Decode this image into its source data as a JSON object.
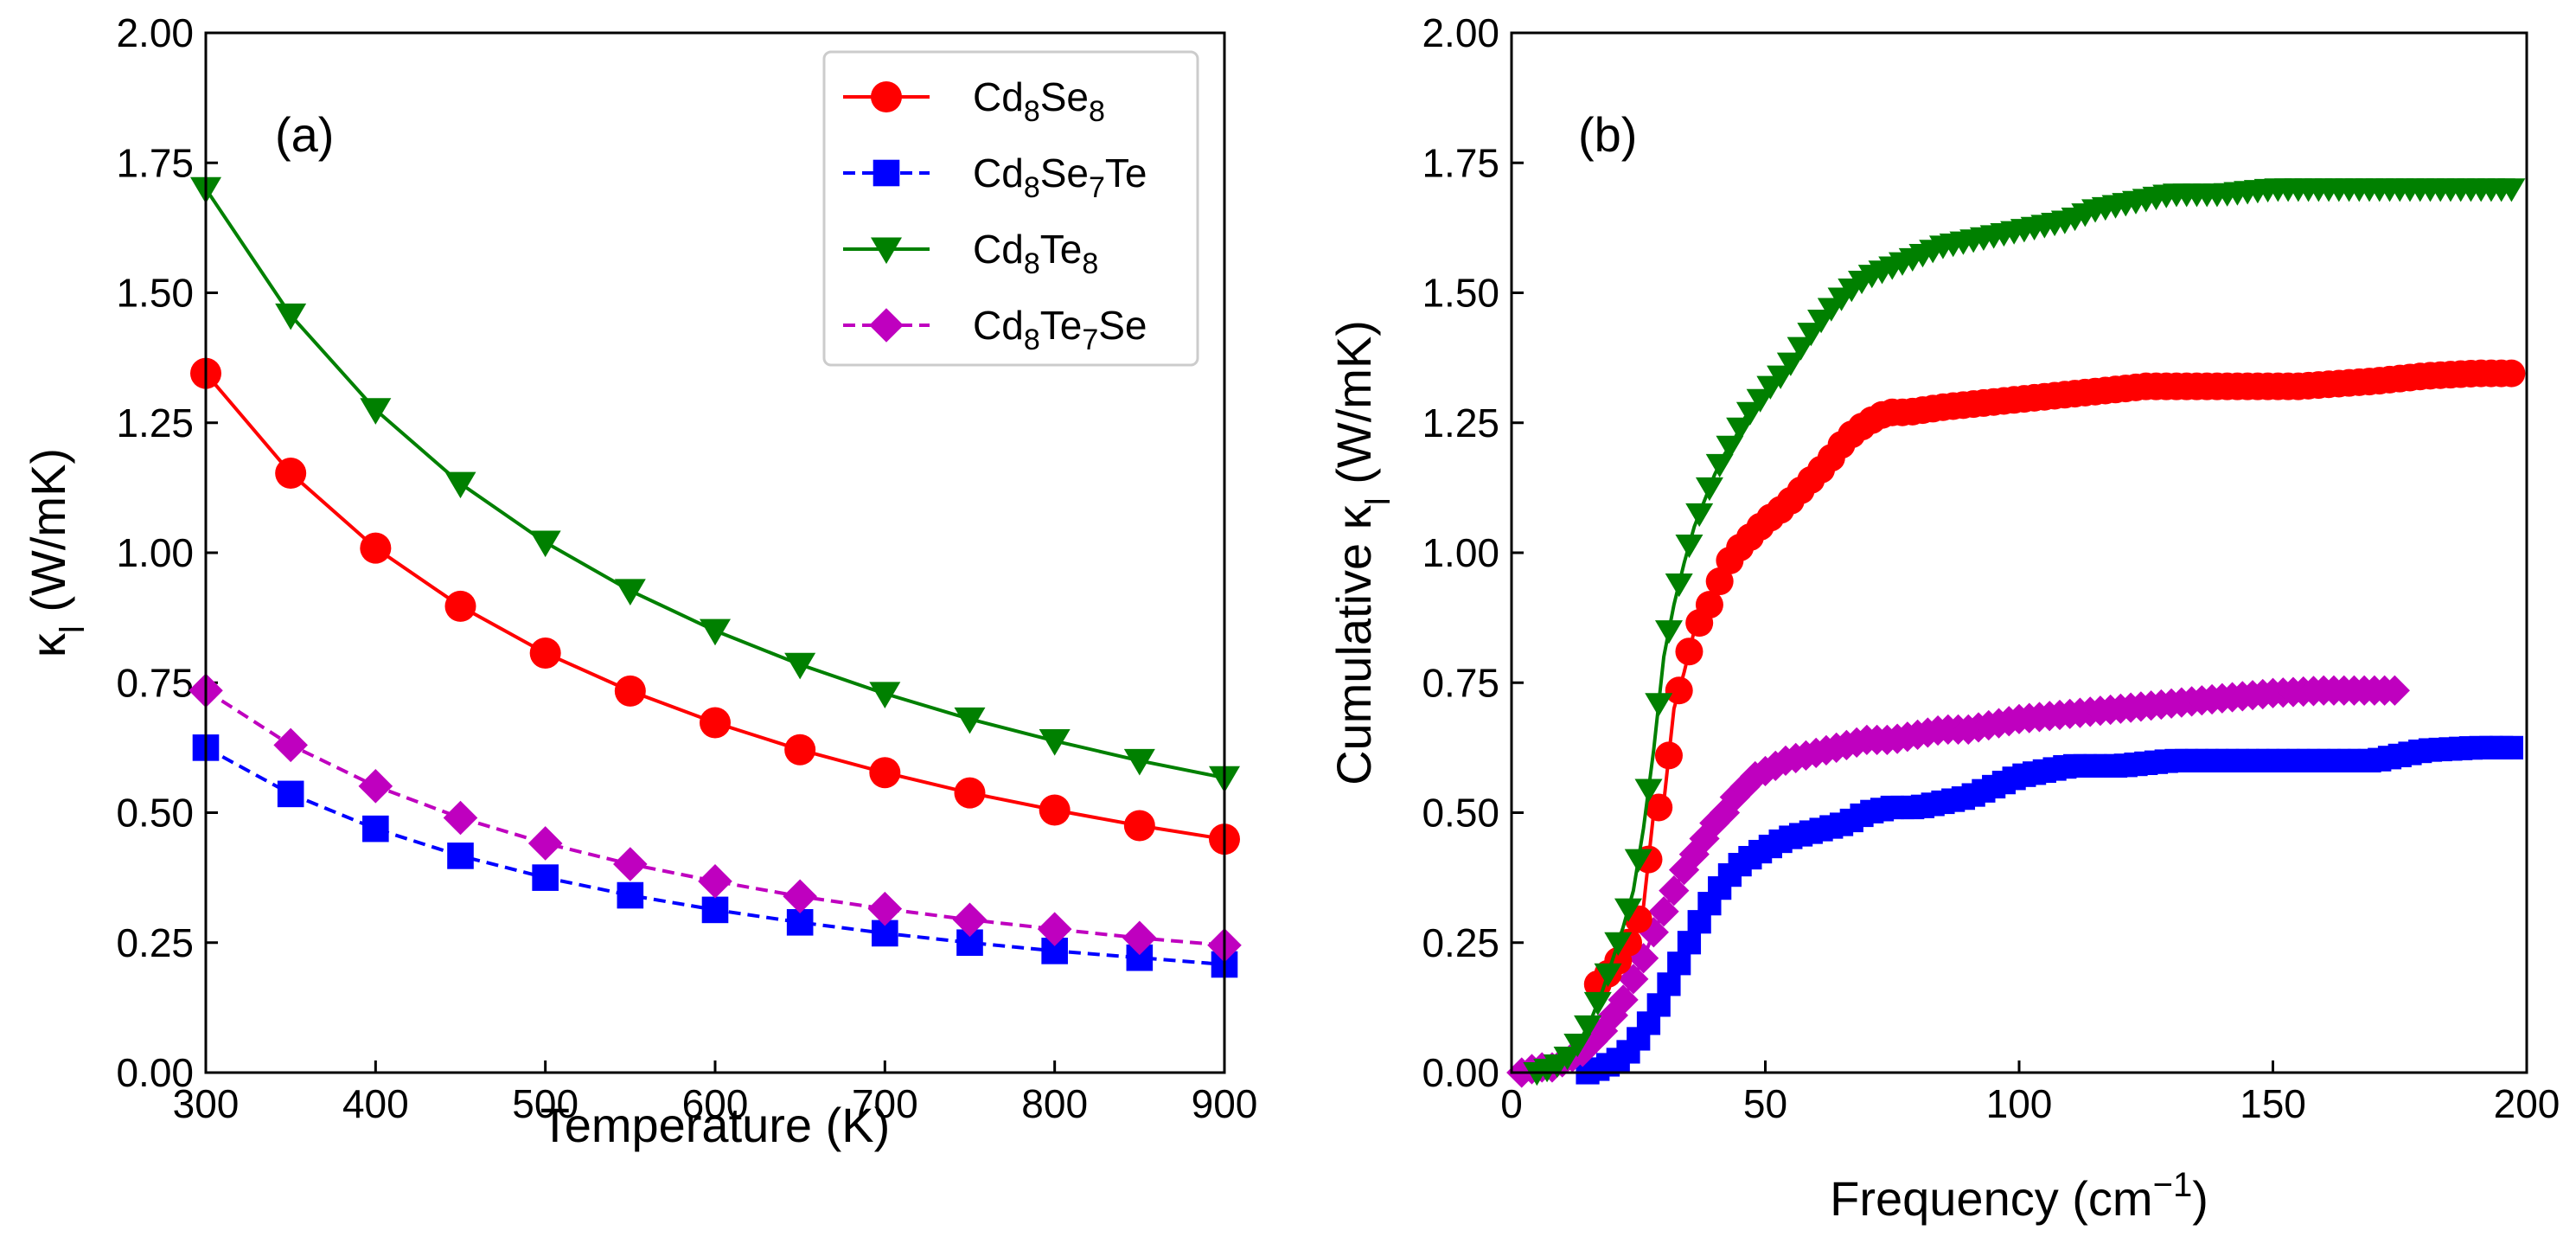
{
  "figure": {
    "colors": {
      "Cd8Se8": "#ff0000",
      "Cd8Se7Te": "#0000ff",
      "Cd8Te8": "#008000",
      "Cd8Te7Se": "#bf00bf"
    }
  },
  "chart_data": [
    {
      "type": "line",
      "panel_tag": "(a)",
      "xlabel": "Temperature (K)",
      "ylabel_main": "κ",
      "ylabel_sub": "l",
      "ylabel_rest": " (W/mK)",
      "xlim": [
        300,
        900
      ],
      "ylim": [
        0,
        2.0
      ],
      "xticks": [
        300,
        400,
        500,
        600,
        700,
        800,
        900
      ],
      "xtick_labels": [
        "300",
        "400",
        "500",
        "600",
        "700",
        "800",
        "900"
      ],
      "yticks": [
        0,
        0.25,
        0.5,
        0.75,
        1.0,
        1.25,
        1.5,
        1.75,
        2.0
      ],
      "ytick_labels": [
        "0.00",
        "0.25",
        "0.50",
        "0.75",
        "1.00",
        "1.25",
        "1.50",
        "1.75",
        "2.00"
      ],
      "x": [
        300,
        350,
        400,
        450,
        500,
        550,
        600,
        650,
        700,
        750,
        800,
        850,
        900
      ],
      "legend_position": "top-right",
      "series": [
        {
          "key": "Cd8Se8",
          "name": "Cd8Se8",
          "legend_parts": [
            [
              "Cd",
              ""
            ],
            [
              "8",
              "sub"
            ],
            [
              "Se",
              ""
            ],
            [
              "8",
              "sub"
            ]
          ],
          "marker": "circle",
          "dash": "solid",
          "values": [
            1.345,
            1.153,
            1.009,
            0.897,
            0.807,
            0.734,
            0.673,
            0.621,
            0.577,
            0.538,
            0.505,
            0.475,
            0.449
          ]
        },
        {
          "key": "Cd8Se7Te",
          "name": "Cd8Se7Te",
          "legend_parts": [
            [
              "Cd",
              ""
            ],
            [
              "8",
              "sub"
            ],
            [
              "Se",
              ""
            ],
            [
              "7",
              "sub"
            ],
            [
              "Te",
              ""
            ]
          ],
          "marker": "square",
          "dash": "dashed",
          "values": [
            0.625,
            0.536,
            0.469,
            0.417,
            0.375,
            0.341,
            0.313,
            0.289,
            0.268,
            0.25,
            0.234,
            0.221,
            0.208
          ]
        },
        {
          "key": "Cd8Te8",
          "name": "Cd8Te8",
          "legend_parts": [
            [
              "Cd",
              ""
            ],
            [
              "8",
              "sub"
            ],
            [
              "Te",
              ""
            ],
            [
              "8",
              "sub"
            ]
          ],
          "marker": "triangle-down",
          "dash": "solid",
          "values": [
            1.7,
            1.457,
            1.275,
            1.133,
            1.02,
            0.927,
            0.85,
            0.785,
            0.729,
            0.68,
            0.638,
            0.6,
            0.567
          ]
        },
        {
          "key": "Cd8Te7Se",
          "name": "Cd8Te7Se",
          "legend_parts": [
            [
              "Cd",
              ""
            ],
            [
              "8",
              "sub"
            ],
            [
              "Te",
              ""
            ],
            [
              "7",
              "sub"
            ],
            [
              "Se",
              ""
            ]
          ],
          "marker": "diamond",
          "dash": "dashed",
          "values": [
            0.735,
            0.63,
            0.551,
            0.49,
            0.441,
            0.401,
            0.368,
            0.339,
            0.315,
            0.294,
            0.276,
            0.259,
            0.245
          ]
        }
      ]
    },
    {
      "type": "line",
      "panel_tag": "(b)",
      "xlabel_main": "Frequency (cm",
      "xlabel_sup": "−1",
      "xlabel_end": ")",
      "ylabel_main": "Cumulative κ",
      "ylabel_sub": "l",
      "ylabel_rest": " (W/mK)",
      "xlim": [
        0,
        200
      ],
      "ylim": [
        0,
        2.0
      ],
      "xticks": [
        0,
        50,
        100,
        150,
        200
      ],
      "xtick_labels": [
        "0",
        "50",
        "100",
        "150",
        "200"
      ],
      "yticks": [
        0,
        0.25,
        0.5,
        0.75,
        1.0,
        1.25,
        1.5,
        1.75,
        2.0
      ],
      "ytick_labels": [
        "0.00",
        "0.25",
        "0.50",
        "0.75",
        "1.00",
        "1.25",
        "1.50",
        "1.75",
        "2.00"
      ],
      "series": [
        {
          "key": "Cd8Se8",
          "marker": "circle",
          "range": [
            17,
            198
          ],
          "points": [
            [
              17,
              0.17
            ],
            [
              20,
              0.2
            ],
            [
              22,
              0.23
            ],
            [
              24,
              0.27
            ],
            [
              26,
              0.32
            ],
            [
              28,
              0.5
            ],
            [
              30,
              0.52
            ],
            [
              32,
              0.7
            ],
            [
              34,
              0.77
            ],
            [
              36,
              0.85
            ],
            [
              38,
              0.88
            ],
            [
              40,
              0.92
            ],
            [
              42,
              0.97
            ],
            [
              44,
              1.0
            ],
            [
              46,
              1.02
            ],
            [
              48,
              1.04
            ],
            [
              50,
              1.06
            ],
            [
              54,
              1.09
            ],
            [
              58,
              1.13
            ],
            [
              62,
              1.17
            ],
            [
              66,
              1.22
            ],
            [
              70,
              1.25
            ],
            [
              74,
              1.27
            ],
            [
              78,
              1.27
            ],
            [
              85,
              1.28
            ],
            [
              95,
              1.29
            ],
            [
              105,
              1.3
            ],
            [
              115,
              1.31
            ],
            [
              125,
              1.32
            ],
            [
              140,
              1.32
            ],
            [
              155,
              1.32
            ],
            [
              170,
              1.33
            ],
            [
              180,
              1.34
            ],
            [
              190,
              1.345
            ],
            [
              198,
              1.345
            ]
          ]
        },
        {
          "key": "Cd8Se7Te",
          "marker": "square",
          "range": [
            15,
            198
          ],
          "points": [
            [
              15,
              0.0
            ],
            [
              18,
              0.01
            ],
            [
              20,
              0.02
            ],
            [
              22,
              0.03
            ],
            [
              24,
              0.05
            ],
            [
              26,
              0.08
            ],
            [
              28,
              0.11
            ],
            [
              30,
              0.15
            ],
            [
              32,
              0.19
            ],
            [
              34,
              0.23
            ],
            [
              36,
              0.27
            ],
            [
              38,
              0.31
            ],
            [
              40,
              0.34
            ],
            [
              42,
              0.37
            ],
            [
              45,
              0.4
            ],
            [
              48,
              0.42
            ],
            [
              50,
              0.43
            ],
            [
              54,
              0.45
            ],
            [
              58,
              0.46
            ],
            [
              62,
              0.47
            ],
            [
              66,
              0.48
            ],
            [
              70,
              0.5
            ],
            [
              75,
              0.51
            ],
            [
              80,
              0.51
            ],
            [
              85,
              0.52
            ],
            [
              90,
              0.53
            ],
            [
              95,
              0.55
            ],
            [
              100,
              0.57
            ],
            [
              105,
              0.58
            ],
            [
              110,
              0.59
            ],
            [
              115,
              0.59
            ],
            [
              120,
              0.59
            ],
            [
              130,
              0.6
            ],
            [
              140,
              0.6
            ],
            [
              150,
              0.6
            ],
            [
              160,
              0.6
            ],
            [
              170,
              0.6
            ],
            [
              175,
              0.61
            ],
            [
              180,
              0.62
            ],
            [
              190,
              0.625
            ],
            [
              198,
              0.625
            ]
          ]
        },
        {
          "key": "Cd8Te8",
          "marker": "triangle-down",
          "range": [
            5,
            198
          ],
          "points": [
            [
              5,
              0.0
            ],
            [
              8,
              0.01
            ],
            [
              10,
              0.02
            ],
            [
              12,
              0.04
            ],
            [
              14,
              0.07
            ],
            [
              16,
              0.11
            ],
            [
              18,
              0.16
            ],
            [
              20,
              0.22
            ],
            [
              22,
              0.28
            ],
            [
              24,
              0.35
            ],
            [
              26,
              0.47
            ],
            [
              28,
              0.62
            ],
            [
              30,
              0.8
            ],
            [
              32,
              0.9
            ],
            [
              34,
              0.98
            ],
            [
              36,
              1.05
            ],
            [
              38,
              1.1
            ],
            [
              40,
              1.15
            ],
            [
              42,
              1.19
            ],
            [
              44,
              1.22
            ],
            [
              46,
              1.26
            ],
            [
              48,
              1.28
            ],
            [
              50,
              1.31
            ],
            [
              54,
              1.35
            ],
            [
              58,
              1.41
            ],
            [
              62,
              1.46
            ],
            [
              66,
              1.5
            ],
            [
              70,
              1.53
            ],
            [
              75,
              1.55
            ],
            [
              80,
              1.57
            ],
            [
              85,
              1.59
            ],
            [
              90,
              1.6
            ],
            [
              95,
              1.61
            ],
            [
              100,
              1.62
            ],
            [
              105,
              1.63
            ],
            [
              110,
              1.64
            ],
            [
              115,
              1.66
            ],
            [
              120,
              1.67
            ],
            [
              125,
              1.68
            ],
            [
              130,
              1.69
            ],
            [
              140,
              1.69
            ],
            [
              150,
              1.7
            ],
            [
              160,
              1.7
            ],
            [
              170,
              1.7
            ],
            [
              180,
              1.7
            ],
            [
              190,
              1.7
            ],
            [
              198,
              1.7
            ]
          ]
        },
        {
          "key": "Cd8Te7Se",
          "marker": "diamond",
          "range": [
            2,
            175
          ],
          "points": [
            [
              2,
              0.0
            ],
            [
              5,
              0.01
            ],
            [
              8,
              0.01
            ],
            [
              10,
              0.02
            ],
            [
              12,
              0.03
            ],
            [
              14,
              0.04
            ],
            [
              16,
              0.06
            ],
            [
              18,
              0.08
            ],
            [
              20,
              0.11
            ],
            [
              22,
              0.14
            ],
            [
              24,
              0.18
            ],
            [
              26,
              0.22
            ],
            [
              28,
              0.27
            ],
            [
              30,
              0.31
            ],
            [
              32,
              0.35
            ],
            [
              34,
              0.39
            ],
            [
              36,
              0.42
            ],
            [
              38,
              0.45
            ],
            [
              40,
              0.48
            ],
            [
              42,
              0.5
            ],
            [
              44,
              0.53
            ],
            [
              46,
              0.55
            ],
            [
              48,
              0.57
            ],
            [
              50,
              0.58
            ],
            [
              54,
              0.6
            ],
            [
              58,
              0.61
            ],
            [
              62,
              0.62
            ],
            [
              66,
              0.63
            ],
            [
              70,
              0.64
            ],
            [
              75,
              0.64
            ],
            [
              80,
              0.65
            ],
            [
              85,
              0.66
            ],
            [
              90,
              0.66
            ],
            [
              95,
              0.67
            ],
            [
              100,
              0.68
            ],
            [
              110,
              0.69
            ],
            [
              120,
              0.7
            ],
            [
              130,
              0.71
            ],
            [
              140,
              0.72
            ],
            [
              150,
              0.73
            ],
            [
              160,
              0.735
            ],
            [
              170,
              0.735
            ],
            [
              175,
              0.735
            ]
          ]
        }
      ]
    }
  ]
}
